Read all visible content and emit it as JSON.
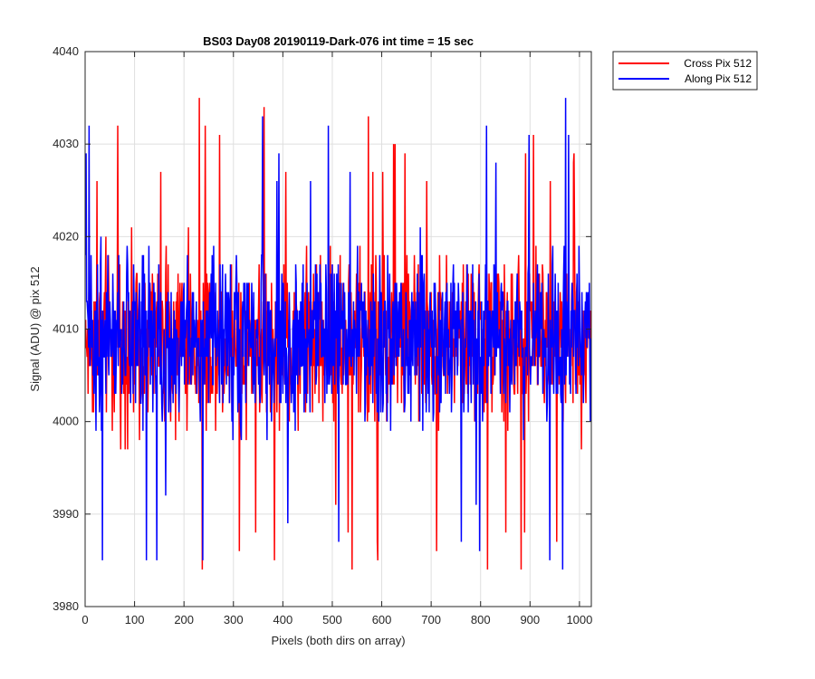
{
  "chart_data": {
    "type": "line",
    "title": "BS03 Day08 20190119-Dark-076 int time = 15 sec",
    "xlabel": "Pixels (both dirs on array)",
    "ylabel": "Signal (ADU) @ pix 512",
    "xlim": [
      0,
      1024
    ],
    "ylim": [
      3980,
      4040
    ],
    "xticks": [
      0,
      100,
      200,
      300,
      400,
      500,
      600,
      700,
      800,
      900,
      1000
    ],
    "yticks": [
      3980,
      3990,
      4000,
      4010,
      4020,
      4030,
      4040
    ],
    "grid": true,
    "legend_position": "outside-top-right",
    "series": [
      {
        "name": "Cross Pix 512",
        "color": "#ff0000",
        "x_start": 1,
        "x_step": 1,
        "mean": 4009,
        "spread": 6,
        "y_min": 3981,
        "y_max": 4036,
        "values": []
      },
      {
        "name": "Along Pix 512",
        "color": "#0000ff",
        "x_start": 1,
        "x_step": 1,
        "mean": 4009,
        "spread": 6,
        "y_min": 3983,
        "y_max": 4036,
        "values": []
      }
    ]
  }
}
